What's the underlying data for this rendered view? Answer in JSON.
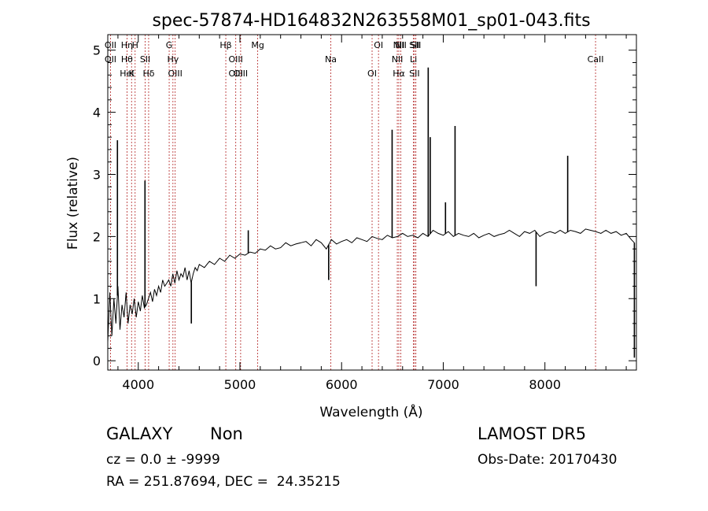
{
  "chart_data": {
    "type": "line",
    "title": "spec-57874-HD164832N263558M01_sp01-043.fits",
    "xlabel": "Wavelength (Å)",
    "ylabel": "Flux (relative)",
    "xlim": [
      3700,
      8900
    ],
    "ylim": [
      -0.15,
      5.25
    ],
    "xticks": [
      4000,
      5000,
      6000,
      7000,
      8000
    ],
    "yticks": [
      0,
      1,
      2,
      3,
      4,
      5
    ],
    "line_color": "#000000",
    "marker_color": "#b22222",
    "spectrum": {
      "x": [
        3700,
        3720,
        3740,
        3760,
        3780,
        3800,
        3820,
        3840,
        3860,
        3880,
        3900,
        3920,
        3940,
        3960,
        3980,
        4000,
        4020,
        4040,
        4060,
        4080,
        4100,
        4120,
        4140,
        4160,
        4180,
        4200,
        4220,
        4240,
        4260,
        4280,
        4300,
        4320,
        4340,
        4360,
        4380,
        4400,
        4420,
        4440,
        4460,
        4480,
        4500,
        4520,
        4540,
        4560,
        4580,
        4600,
        4650,
        4700,
        4750,
        4800,
        4850,
        4900,
        4950,
        5000,
        5050,
        5100,
        5150,
        5200,
        5250,
        5300,
        5350,
        5400,
        5450,
        5500,
        5550,
        5600,
        5650,
        5700,
        5750,
        5800,
        5850,
        5900,
        5950,
        6000,
        6050,
        6100,
        6150,
        6200,
        6250,
        6300,
        6350,
        6400,
        6450,
        6500,
        6550,
        6600,
        6650,
        6700,
        6750,
        6800,
        6850,
        6900,
        6950,
        7000,
        7050,
        7100,
        7150,
        7200,
        7250,
        7300,
        7350,
        7400,
        7450,
        7500,
        7550,
        7600,
        7650,
        7700,
        7750,
        7800,
        7850,
        7900,
        7950,
        8000,
        8050,
        8100,
        8150,
        8200,
        8250,
        8300,
        8350,
        8400,
        8450,
        8500,
        8550,
        8600,
        8650,
        8700,
        8750,
        8800,
        8850,
        8880
      ],
      "y": [
        0.3,
        1.1,
        0.4,
        1.0,
        0.6,
        1.2,
        0.5,
        0.9,
        0.7,
        1.1,
        0.6,
        0.9,
        0.75,
        1.0,
        0.7,
        0.95,
        0.8,
        1.05,
        0.85,
        0.9,
        1.0,
        1.1,
        0.95,
        1.15,
        1.05,
        1.2,
        1.1,
        1.3,
        1.2,
        1.25,
        1.3,
        1.2,
        1.4,
        1.25,
        1.45,
        1.3,
        1.4,
        1.35,
        1.5,
        1.3,
        1.45,
        1.25,
        1.4,
        1.5,
        1.45,
        1.55,
        1.5,
        1.6,
        1.55,
        1.65,
        1.6,
        1.7,
        1.65,
        1.72,
        1.7,
        1.75,
        1.73,
        1.8,
        1.78,
        1.85,
        1.8,
        1.82,
        1.9,
        1.85,
        1.88,
        1.9,
        1.92,
        1.85,
        1.95,
        1.9,
        1.8,
        1.95,
        1.88,
        1.92,
        1.95,
        1.9,
        1.98,
        1.95,
        1.92,
        2.0,
        1.97,
        1.95,
        2.02,
        1.98,
        2.0,
        2.05,
        2.0,
        2.02,
        1.98,
        2.05,
        2.0,
        2.1,
        2.05,
        2.02,
        2.08,
        2.0,
        2.05,
        2.02,
        2.0,
        2.05,
        1.98,
        2.02,
        2.05,
        2.0,
        2.03,
        2.05,
        2.1,
        2.05,
        2.0,
        2.08,
        2.05,
        2.1,
        2.0,
        2.05,
        2.08,
        2.05,
        2.1,
        2.05,
        2.1,
        2.08,
        2.05,
        2.12,
        2.1,
        2.08,
        2.05,
        2.1,
        2.05,
        2.08,
        2.02,
        2.05,
        1.95,
        1.9
      ]
    },
    "spikes": [
      {
        "x": 3795,
        "y": 3.55
      },
      {
        "x": 4066,
        "y": 2.9
      },
      {
        "x": 4522,
        "y": 0.6
      },
      {
        "x": 5082,
        "y": 2.1
      },
      {
        "x": 5873,
        "y": 1.3
      },
      {
        "x": 6497,
        "y": 3.72
      },
      {
        "x": 6852,
        "y": 4.72
      },
      {
        "x": 6872,
        "y": 3.6
      },
      {
        "x": 7022,
        "y": 2.55
      },
      {
        "x": 7116,
        "y": 3.78
      },
      {
        "x": 7913,
        "y": 1.2
      },
      {
        "x": 8224,
        "y": 3.3
      },
      {
        "x": 8880,
        "y": 0.05
      }
    ],
    "lines": [
      {
        "wl": 3727,
        "labels": [
          "OII",
          "OII"
        ]
      },
      {
        "wl": 3889,
        "labels": [
          "Hθ",
          "HeI",
          "Hη"
        ]
      },
      {
        "wl": 3934,
        "labels": [
          "K"
        ]
      },
      {
        "wl": 3969,
        "labels": [
          "H"
        ]
      },
      {
        "wl": 4068,
        "labels": [
          "SII"
        ]
      },
      {
        "wl": 4102,
        "labels": [
          "Hδ"
        ]
      },
      {
        "wl": 4304,
        "labels": [
          "G"
        ]
      },
      {
        "wl": 4341,
        "labels": [
          "Hγ"
        ]
      },
      {
        "wl": 4363,
        "labels": [
          "OIII"
        ]
      },
      {
        "wl": 4861,
        "labels": [
          "Hβ"
        ]
      },
      {
        "wl": 4959,
        "labels": [
          "OIII",
          "OIII"
        ]
      },
      {
        "wl": 5007,
        "labels": [
          "OIII"
        ]
      },
      {
        "wl": 5175,
        "labels": [
          "Mg"
        ]
      },
      {
        "wl": 5894,
        "labels": [
          "Na"
        ]
      },
      {
        "wl": 6300,
        "labels": [
          "OI"
        ]
      },
      {
        "wl": 6363,
        "labels": [
          "OI"
        ]
      },
      {
        "wl": 6548,
        "labels": [
          "NII"
        ]
      },
      {
        "wl": 6563,
        "labels": [
          "Hα",
          "NII"
        ]
      },
      {
        "wl": 6583,
        "labels": [
          "NII"
        ]
      },
      {
        "wl": 6707,
        "labels": [
          "Li"
        ]
      },
      {
        "wl": 6717,
        "labels": [
          "SII",
          "SII"
        ]
      },
      {
        "wl": 6731,
        "labels": [
          "SII"
        ]
      },
      {
        "wl": 8498,
        "labels": [
          "CaII"
        ]
      }
    ]
  },
  "info": {
    "class_label": "GALAXY",
    "subclass_label": "Non",
    "cz_text": "cz = 0.0 ± -9999",
    "coords_text": "RA = 251.87694, DEC =  24.35215",
    "survey": "LAMOST DR5",
    "obs_date": "Obs-Date: 20170430"
  }
}
